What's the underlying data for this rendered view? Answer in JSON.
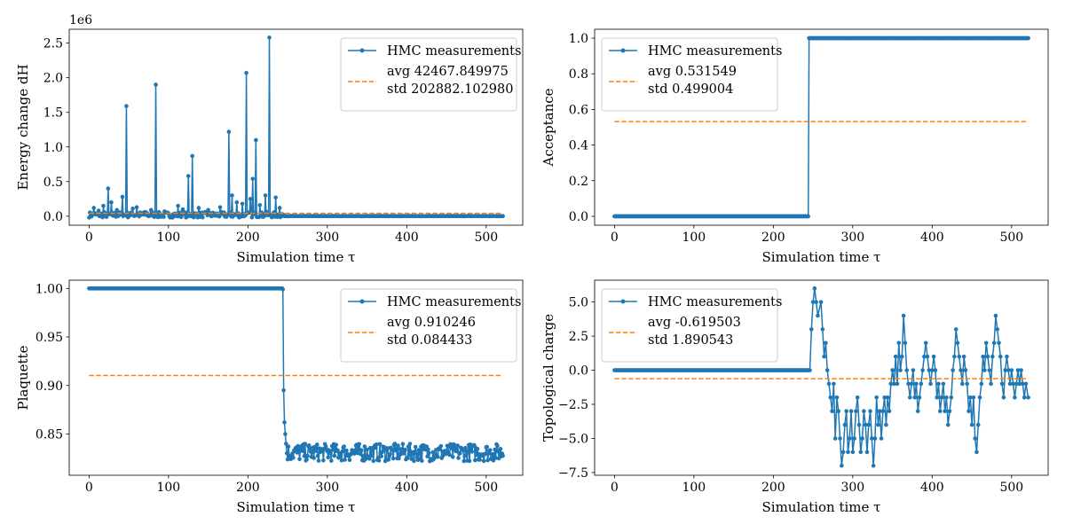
{
  "chart_data": [
    {
      "type": "line",
      "xlabel": "Simulation time τ",
      "ylabel": "Energy change dH",
      "offset_text": "1e6",
      "xlim": [
        -25,
        546
      ],
      "ylim": [
        -130000,
        2700000
      ],
      "xticks": [
        0,
        100,
        200,
        300,
        400,
        500
      ],
      "yticks": [
        0,
        500000,
        1000000,
        1500000,
        2000000,
        2500000
      ],
      "ytick_labels": [
        "0.0",
        "0.5",
        "1.0",
        "1.5",
        "2.0",
        "2.5"
      ],
      "legend_loc": "top-right",
      "series": [
        {
          "name": "HMC measurements",
          "color": "#1f77b4",
          "segments": [
            {
              "x0": 0,
              "x1": 245,
              "base": 20000,
              "amp": 40000
            },
            {
              "x0": 245,
              "x1": 521,
              "base": 2000,
              "amp": 2000
            }
          ],
          "spikes": [
            [
              6,
              120000
            ],
            [
              12,
              80000
            ],
            [
              18,
              150000
            ],
            [
              24,
              400000
            ],
            [
              28,
              200000
            ],
            [
              35,
              90000
            ],
            [
              42,
              280000
            ],
            [
              47,
              1590000
            ],
            [
              55,
              110000
            ],
            [
              60,
              130000
            ],
            [
              70,
              60000
            ],
            [
              78,
              90000
            ],
            [
              84,
              1900000
            ],
            [
              95,
              70000
            ],
            [
              112,
              150000
            ],
            [
              118,
              100000
            ],
            [
              125,
              580000
            ],
            [
              130,
              870000
            ],
            [
              138,
              120000
            ],
            [
              150,
              90000
            ],
            [
              165,
              130000
            ],
            [
              176,
              1220000
            ],
            [
              180,
              300000
            ],
            [
              186,
              200000
            ],
            [
              193,
              180000
            ],
            [
              198,
              2070000
            ],
            [
              203,
              250000
            ],
            [
              206,
              540000
            ],
            [
              210,
              1100000
            ],
            [
              215,
              160000
            ],
            [
              222,
              300000
            ],
            [
              227,
              2580000
            ],
            [
              235,
              270000
            ],
            [
              240,
              120000
            ]
          ]
        },
        {
          "name": "avg 42467.849975\nstd 202882.102980",
          "legend_lines": [
            "avg 42467.849975",
            "std 202882.102980"
          ],
          "style": "dashed",
          "color": "#ff7f0e",
          "x": [
            0,
            521
          ],
          "y": [
            42467.849975,
            42467.849975
          ]
        }
      ]
    },
    {
      "type": "line",
      "xlabel": "Simulation time τ",
      "ylabel": "Acceptance",
      "xlim": [
        -25,
        546
      ],
      "ylim": [
        -0.05,
        1.05
      ],
      "xticks": [
        0,
        100,
        200,
        300,
        400,
        500
      ],
      "yticks": [
        0,
        0.2,
        0.4,
        0.6,
        0.8,
        1.0
      ],
      "ytick_labels": [
        "0.0",
        "0.2",
        "0.4",
        "0.6",
        "0.8",
        "1.0"
      ],
      "legend_loc": "top-left",
      "series": [
        {
          "name": "HMC measurements",
          "color": "#1f77b4",
          "segments": [
            {
              "x0": 0,
              "x1": 244,
              "value": 0
            },
            {
              "x0": 245,
              "x1": 521,
              "value": 1
            }
          ]
        },
        {
          "name": "avg 0.531549\nstd 0.499004",
          "legend_lines": [
            "avg 0.531549",
            "std 0.499004"
          ],
          "style": "dashed",
          "color": "#ff7f0e",
          "x": [
            0,
            521
          ],
          "y": [
            0.531549,
            0.531549
          ]
        }
      ]
    },
    {
      "type": "line",
      "xlabel": "Simulation time τ",
      "ylabel": "Plaquette",
      "xlim": [
        -25,
        546
      ],
      "ylim": [
        0.8075,
        1.0085
      ],
      "xticks": [
        0,
        100,
        200,
        300,
        400,
        500
      ],
      "yticks": [
        0.85,
        0.9,
        0.95,
        1.0
      ],
      "ytick_labels": [
        "0.85",
        "0.90",
        "0.95",
        "1.00"
      ],
      "legend_loc": "top-right",
      "series": [
        {
          "name": "HMC measurements",
          "color": "#1f77b4",
          "segments": [
            {
              "x0": 0,
              "x1": 243,
              "value": 1.0
            },
            {
              "x0": 244,
              "x1": 248,
              "points": [
                [
                  244,
                  0.999
                ],
                [
                  245,
                  0.895
                ],
                [
                  246,
                  0.862
                ],
                [
                  247,
                  0.85
                ],
                [
                  248,
                  0.84
                ]
              ]
            },
            {
              "x0": 249,
              "x1": 521,
              "base": 0.831,
              "amp": 0.009
            }
          ]
        },
        {
          "name": "avg 0.910246\nstd 0.084433",
          "legend_lines": [
            "avg 0.910246",
            "std 0.084433"
          ],
          "style": "dashed",
          "color": "#ff7f0e",
          "x": [
            0,
            521
          ],
          "y": [
            0.910246,
            0.910246
          ]
        }
      ]
    },
    {
      "type": "line",
      "xlabel": "Simulation time τ",
      "ylabel": "Topological charge",
      "xlim": [
        -25,
        546
      ],
      "ylim": [
        -7.7,
        6.6
      ],
      "xticks": [
        0,
        100,
        200,
        300,
        400,
        500
      ],
      "yticks": [
        -7.5,
        -5.0,
        -2.5,
        0.0,
        2.5,
        5.0
      ],
      "ytick_labels": [
        "−7.5",
        "−5.0",
        "−2.5",
        "0.0",
        "2.5",
        "5.0"
      ],
      "legend_loc": "top-left",
      "series": [
        {
          "name": "HMC measurements",
          "color": "#1f77b4",
          "segments": [
            {
              "x0": 0,
              "x1": 245,
              "value": 0
            },
            {
              "x0": 246,
              "x1": 521,
              "walk": [
                [
                  246,
                  0
                ],
                [
                  248,
                  3
                ],
                [
                  250,
                  5
                ],
                [
                  252,
                  6
                ],
                [
                  254,
                  5
                ],
                [
                  256,
                  4
                ],
                [
                  260,
                  5
                ],
                [
                  262,
                  3
                ],
                [
                  264,
                  1
                ],
                [
                  266,
                  2
                ],
                [
                  268,
                  0
                ],
                [
                  270,
                  -1
                ],
                [
                  272,
                  -2
                ],
                [
                  274,
                  -3
                ],
                [
                  276,
                  -1
                ],
                [
                  278,
                  -5
                ],
                [
                  280,
                  -2
                ],
                [
                  282,
                  -3
                ],
                [
                  284,
                  -5
                ],
                [
                  286,
                  -7
                ],
                [
                  288,
                  -6
                ],
                [
                  290,
                  -4
                ],
                [
                  292,
                  -3
                ],
                [
                  294,
                  -6
                ],
                [
                  296,
                  -5
                ],
                [
                  298,
                  -3
                ],
                [
                  300,
                  -6
                ],
                [
                  302,
                  -5
                ],
                [
                  304,
                  -3
                ],
                [
                  306,
                  -2
                ],
                [
                  308,
                  -4
                ],
                [
                  310,
                  -6
                ],
                [
                  312,
                  -5
                ],
                [
                  314,
                  -3
                ],
                [
                  316,
                  -4
                ],
                [
                  318,
                  -6
                ],
                [
                  320,
                  -4
                ],
                [
                  322,
                  -3
                ],
                [
                  324,
                  -5
                ],
                [
                  326,
                  -7
                ],
                [
                  328,
                  -5
                ],
                [
                  330,
                  -2
                ],
                [
                  332,
                  -4
                ],
                [
                  334,
                  -3
                ],
                [
                  336,
                  -5
                ],
                [
                  338,
                  -3
                ],
                [
                  340,
                  -2
                ],
                [
                  342,
                  -4
                ],
                [
                  344,
                  -2
                ],
                [
                  346,
                  -3
                ],
                [
                  348,
                  -1
                ],
                [
                  350,
                  0
                ],
                [
                  352,
                  -1
                ],
                [
                  354,
                  1
                ],
                [
                  356,
                  -1
                ],
                [
                  358,
                  2
                ],
                [
                  360,
                  0
                ],
                [
                  362,
                  1
                ],
                [
                  364,
                  4
                ],
                [
                  366,
                  2
                ],
                [
                  368,
                  0
                ],
                [
                  370,
                  -1
                ],
                [
                  372,
                  -2
                ],
                [
                  374,
                  -1
                ],
                [
                  376,
                  0
                ],
                [
                  378,
                  -2
                ],
                [
                  380,
                  -1
                ],
                [
                  382,
                  -3
                ],
                [
                  384,
                  -2
                ],
                [
                  386,
                  -1
                ],
                [
                  388,
                  0
                ],
                [
                  390,
                  1
                ],
                [
                  392,
                  2
                ],
                [
                  394,
                  1
                ],
                [
                  396,
                  0
                ],
                [
                  398,
                  -1
                ],
                [
                  400,
                  0
                ],
                [
                  402,
                  1
                ],
                [
                  404,
                  0
                ],
                [
                  406,
                  -2
                ],
                [
                  408,
                  -1
                ],
                [
                  410,
                  -3
                ],
                [
                  412,
                  -2
                ],
                [
                  414,
                  -1
                ],
                [
                  416,
                  -3
                ],
                [
                  418,
                  -2
                ],
                [
                  420,
                  -4
                ],
                [
                  422,
                  -3
                ],
                [
                  424,
                  -2
                ],
                [
                  426,
                  0
                ],
                [
                  428,
                  1
                ],
                [
                  430,
                  3
                ],
                [
                  432,
                  2
                ],
                [
                  434,
                  1
                ],
                [
                  436,
                  0
                ],
                [
                  438,
                  -1
                ],
                [
                  440,
                  1
                ],
                [
                  442,
                  0
                ],
                [
                  444,
                  -1
                ],
                [
                  446,
                  -3
                ],
                [
                  448,
                  -2
                ],
                [
                  450,
                  -4
                ],
                [
                  452,
                  -2
                ],
                [
                  454,
                  -5
                ],
                [
                  456,
                  -6
                ],
                [
                  458,
                  -4
                ],
                [
                  460,
                  -2
                ],
                [
                  462,
                  -1
                ],
                [
                  464,
                  1
                ],
                [
                  466,
                  0
                ],
                [
                  468,
                  2
                ],
                [
                  470,
                  1
                ],
                [
                  472,
                  0
                ],
                [
                  474,
                  -1
                ],
                [
                  476,
                  1
                ],
                [
                  478,
                  2
                ],
                [
                  480,
                  4
                ],
                [
                  482,
                  3
                ],
                [
                  484,
                  2
                ],
                [
                  486,
                  1
                ],
                [
                  488,
                  -1
                ],
                [
                  490,
                  -2
                ],
                [
                  492,
                  0
                ],
                [
                  494,
                  1
                ],
                [
                  496,
                  0
                ],
                [
                  498,
                  -1
                ],
                [
                  500,
                  0
                ],
                [
                  502,
                  -1
                ],
                [
                  504,
                  -2
                ],
                [
                  506,
                  -1
                ],
                [
                  508,
                  0
                ],
                [
                  510,
                  -1
                ],
                [
                  512,
                  0
                ],
                [
                  514,
                  -1
                ],
                [
                  516,
                  -2
                ],
                [
                  518,
                  -1
                ],
                [
                  521,
                  -2
                ]
              ]
            }
          ]
        },
        {
          "name": "avg -0.619503\nstd 1.890543",
          "legend_lines": [
            "avg -0.619503",
            "std 1.890543"
          ],
          "style": "dashed",
          "color": "#ff7f0e",
          "x": [
            0,
            521
          ],
          "y": [
            -0.619503,
            -0.619503
          ]
        }
      ]
    }
  ]
}
